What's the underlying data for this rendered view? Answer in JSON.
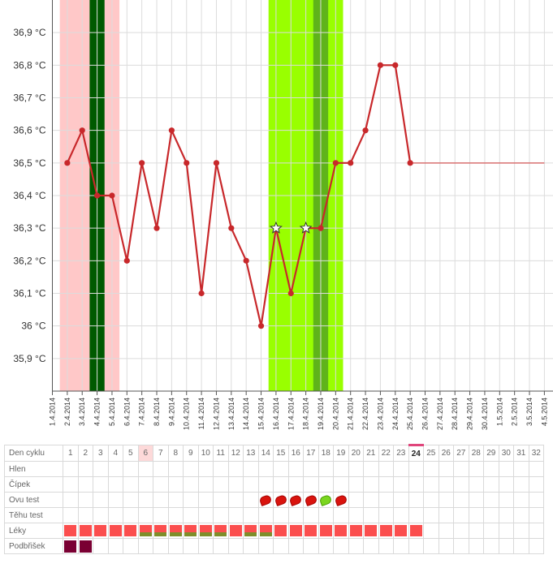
{
  "chart_data": {
    "type": "line",
    "x_dates": [
      "1.4.2014",
      "2.4.2014",
      "3.4.2014",
      "4.4.2014",
      "5.4.2014",
      "6.4.2014",
      "7.4.2014",
      "8.4.2014",
      "9.4.2014",
      "10.4.2014",
      "11.4.2014",
      "12.4.2014",
      "13.4.2014",
      "14.4.2014",
      "15.4.2014",
      "16.4.2014",
      "17.4.2014",
      "18.4.2014",
      "19.4.2014",
      "20.4.2014",
      "21.4.2014",
      "22.4.2014",
      "23.4.2014",
      "24.4.2014",
      "25.4.2014",
      "26.4.2014",
      "27.4.2014",
      "28.4.2014",
      "29.4.2014",
      "30.4.2014",
      "1.5.2014",
      "2.5.2014",
      "3.5.2014",
      "4.5.2014",
      "4.5.2014"
    ],
    "y_ticks": [
      "36,9 °C",
      "36,8 °C",
      "36,7 °C",
      "36,6 °C",
      "36,5 °C",
      "36,4 °C",
      "36,3 °C",
      "36,2 °C",
      "36,1 °C",
      "36 °C",
      "35,9 °C"
    ],
    "y_tick_values": [
      36.9,
      36.8,
      36.7,
      36.6,
      36.5,
      36.4,
      36.3,
      36.2,
      36.1,
      36.0,
      35.9
    ],
    "ylim": [
      35.8,
      37.0
    ],
    "series": [
      {
        "values": [
          36.5,
          36.6,
          36.4,
          36.4,
          36.2,
          36.5,
          36.3,
          36.6,
          36.5,
          36.1,
          36.5,
          36.3,
          36.2,
          36.0,
          36.3,
          36.1,
          36.3,
          36.3,
          36.5,
          36.5,
          36.6,
          36.8,
          36.8,
          36.5
        ],
        "start_index": 1,
        "color": "#c8282b",
        "star_indices": [
          15,
          17
        ]
      }
    ],
    "projection": {
      "value": 36.5,
      "from_index": 24,
      "to_index": 33,
      "color": "#d97070"
    },
    "bands": [
      {
        "from": 1,
        "to": 5,
        "color": "#ffc8c8"
      },
      {
        "from": 3,
        "to": 4,
        "color": "#005a00"
      },
      {
        "from": 15,
        "to": 20,
        "color": "#99ff00"
      },
      {
        "from": 18,
        "to": 19,
        "color": "#5fb31a"
      }
    ],
    "grid": true
  },
  "cycle_table": {
    "rows": [
      "Den cyklu",
      "Hlen",
      "Čípek",
      "Ovu test",
      "Těhu test",
      "Léky",
      "Podbřišek"
    ],
    "days": [
      "1",
      "2",
      "3",
      "4",
      "5",
      "6",
      "7",
      "8",
      "9",
      "10",
      "11",
      "12",
      "13",
      "14",
      "15",
      "16",
      "17",
      "18",
      "19",
      "20",
      "21",
      "22",
      "23",
      "24",
      "25",
      "26",
      "27",
      "28",
      "29",
      "30",
      "31",
      "32"
    ],
    "highlight_day": "6",
    "today_day": "24",
    "ovu_test": [
      "",
      "",
      "",
      "",
      "",
      "",
      "",
      "",
      "",
      "",
      "",
      "",
      "",
      "red",
      "red",
      "red",
      "red",
      "green",
      "red",
      "",
      "",
      "",
      "",
      "",
      "",
      "",
      "",
      "",
      "",
      "",
      "",
      ""
    ],
    "meds": [
      "single",
      "single",
      "single",
      "single",
      "single",
      "dual",
      "dual",
      "dual",
      "dual",
      "dual",
      "dual",
      "single",
      "dual",
      "dual",
      "single",
      "single",
      "single",
      "single",
      "single",
      "single",
      "single",
      "single",
      "single",
      "single",
      "",
      "",
      "",
      "",
      "",
      "",
      "",
      ""
    ],
    "pain": [
      "yes",
      "yes",
      "",
      "",
      "",
      "",
      "",
      "",
      "",
      "",
      "",
      "",
      "",
      "",
      "",
      "",
      "",
      "",
      "",
      "",
      "",
      "",
      "",
      "",
      "",
      "",
      "",
      "",
      "",
      "",
      "",
      ""
    ]
  }
}
